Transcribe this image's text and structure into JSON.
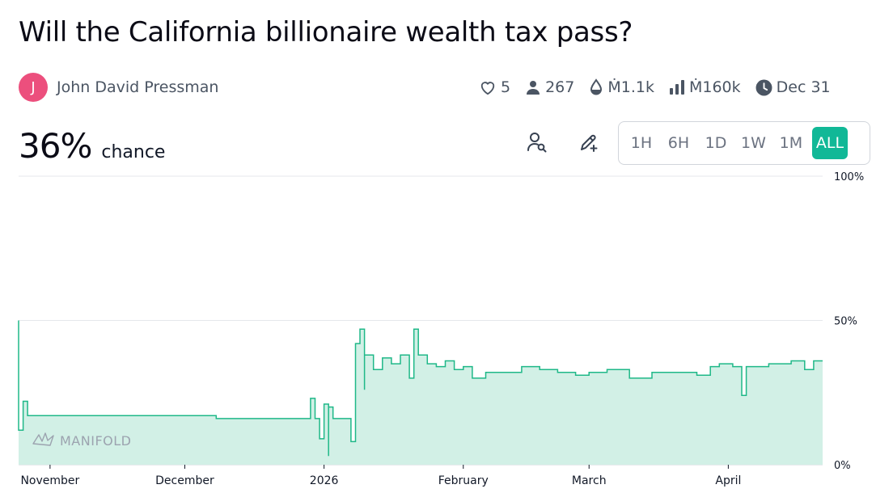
{
  "market": {
    "title": "Will the California billionaire wealth tax pass?"
  },
  "author": {
    "initial": "J",
    "name": "John David Pressman",
    "avatar_color": "#ec4f7d"
  },
  "stats": {
    "likes": "5",
    "traders": "267",
    "liquidity": "Ṁ1.1k",
    "volume": "Ṁ160k",
    "close_date": "Dec 31"
  },
  "probability": {
    "value": "36%",
    "label": "chance"
  },
  "toolbar": {
    "search_icon": "user-search-icon",
    "edit_icon": "pencil-plus-icon"
  },
  "time_range": {
    "options": [
      "1H",
      "6H",
      "1D",
      "1W",
      "1M",
      "ALL"
    ],
    "selected": "ALL",
    "accent": "#11b897"
  },
  "watermark": {
    "text": "MANIFOLD"
  },
  "chart_data": {
    "type": "area",
    "y_ticks": [
      "100%",
      "50%",
      "0%"
    ],
    "ylim": [
      0,
      100
    ],
    "x_ticks": [
      "November",
      "December",
      "2026",
      "February",
      "March",
      "April"
    ],
    "series": [
      {
        "color": "#1fb888",
        "fill": "#d2f0e6",
        "points": [
          [
            "2025-10-25",
            50
          ],
          [
            "2025-10-25",
            12
          ],
          [
            "2025-10-26",
            22
          ],
          [
            "2025-10-27",
            17
          ],
          [
            "2025-11-10",
            17
          ],
          [
            "2025-11-30",
            17
          ],
          [
            "2025-12-08",
            16
          ],
          [
            "2025-12-28",
            16
          ],
          [
            "2025-12-29",
            23
          ],
          [
            "2025-12-30",
            16
          ],
          [
            "2025-12-31",
            9
          ],
          [
            "2026-01-01",
            21
          ],
          [
            "2026-01-02",
            3
          ],
          [
            "2026-01-02",
            20
          ],
          [
            "2026-01-03",
            16
          ],
          [
            "2026-01-06",
            16
          ],
          [
            "2026-01-07",
            8
          ],
          [
            "2026-01-08",
            32
          ],
          [
            "2026-01-08",
            42
          ],
          [
            "2026-01-09",
            47
          ],
          [
            "2026-01-10",
            26
          ],
          [
            "2026-01-10",
            38
          ],
          [
            "2026-01-12",
            33
          ],
          [
            "2026-01-14",
            37
          ],
          [
            "2026-01-16",
            35
          ],
          [
            "2026-01-18",
            38
          ],
          [
            "2026-01-20",
            30
          ],
          [
            "2026-01-21",
            47
          ],
          [
            "2026-01-22",
            38
          ],
          [
            "2026-01-24",
            35
          ],
          [
            "2026-01-26",
            34
          ],
          [
            "2026-01-28",
            36
          ],
          [
            "2026-01-30",
            33
          ],
          [
            "2026-02-01",
            34
          ],
          [
            "2026-02-03",
            30
          ],
          [
            "2026-02-06",
            32
          ],
          [
            "2026-02-10",
            32
          ],
          [
            "2026-02-14",
            34
          ],
          [
            "2026-02-18",
            33
          ],
          [
            "2026-02-22",
            32
          ],
          [
            "2026-02-26",
            31
          ],
          [
            "2026-03-01",
            32
          ],
          [
            "2026-03-05",
            33
          ],
          [
            "2026-03-10",
            30
          ],
          [
            "2026-03-15",
            32
          ],
          [
            "2026-03-20",
            32
          ],
          [
            "2026-03-25",
            31
          ],
          [
            "2026-03-28",
            34
          ],
          [
            "2026-03-30",
            35
          ],
          [
            "2026-04-02",
            34
          ],
          [
            "2026-04-04",
            24
          ],
          [
            "2026-04-05",
            34
          ],
          [
            "2026-04-10",
            35
          ],
          [
            "2026-04-15",
            36
          ],
          [
            "2026-04-18",
            33
          ],
          [
            "2026-04-20",
            36
          ],
          [
            "2026-04-22",
            36
          ]
        ]
      }
    ]
  }
}
